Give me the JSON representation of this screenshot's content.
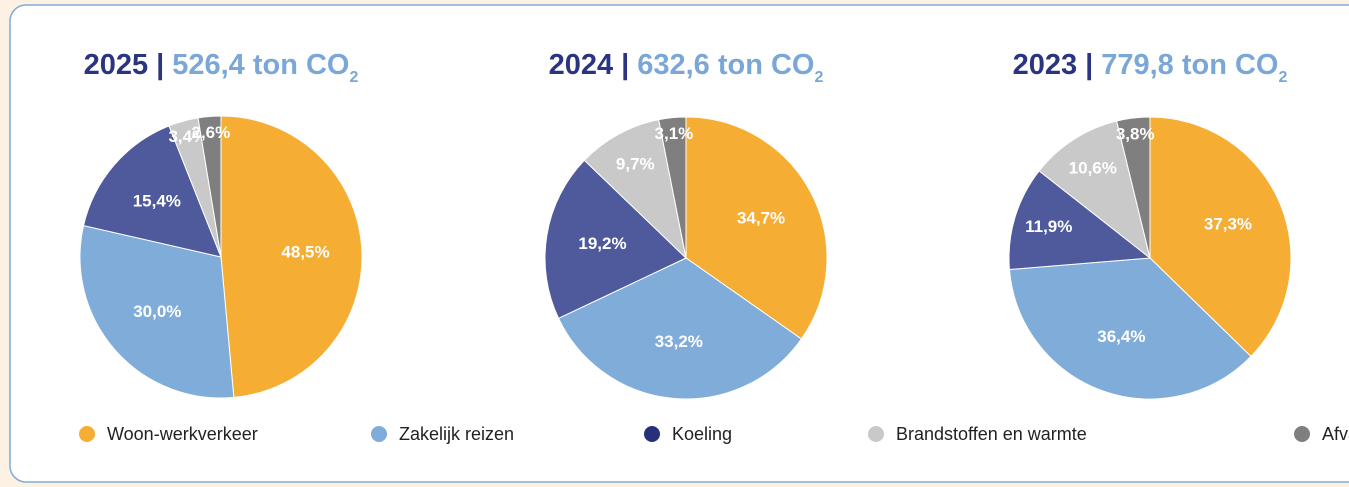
{
  "chart_data": [
    {
      "type": "pie",
      "title": "2025",
      "separator": "|",
      "subtitle": "526,4 ton CO",
      "subtitle_sub": "2",
      "values": [
        48.5,
        30.0,
        15.4,
        3.4,
        2.6
      ],
      "value_labels": [
        "48,5%",
        "30,0%",
        "15,4%",
        "3,4%",
        "2,6%"
      ]
    },
    {
      "type": "pie",
      "title": "2024",
      "separator": "|",
      "subtitle": "632,6 ton CO",
      "subtitle_sub": "2",
      "values": [
        34.7,
        33.2,
        19.2,
        9.7,
        3.1
      ],
      "value_labels": [
        "34,7%",
        "33,2%",
        "19,2%",
        "9,7%",
        "3,1%"
      ]
    },
    {
      "type": "pie",
      "title": "2023",
      "separator": "|",
      "subtitle": "779,8 ton CO",
      "subtitle_sub": "2",
      "values": [
        37.3,
        36.4,
        11.9,
        10.6,
        3.8
      ],
      "value_labels": [
        "37,3%",
        "36,4%",
        "11,9%",
        "10,6%",
        "3,8%"
      ]
    }
  ],
  "legend": [
    {
      "name": "Woon-werkverkeer",
      "color": "#f5ae33"
    },
    {
      "name": "Zakelijk reizen",
      "color": "#80acd9"
    },
    {
      "name": "Koeling",
      "color": "#4e5a9c"
    },
    {
      "name": "Brandstoffen en warmte",
      "color": "#c9c9c9"
    },
    {
      "name": "Afval",
      "color": "#7f7f7f"
    }
  ]
}
